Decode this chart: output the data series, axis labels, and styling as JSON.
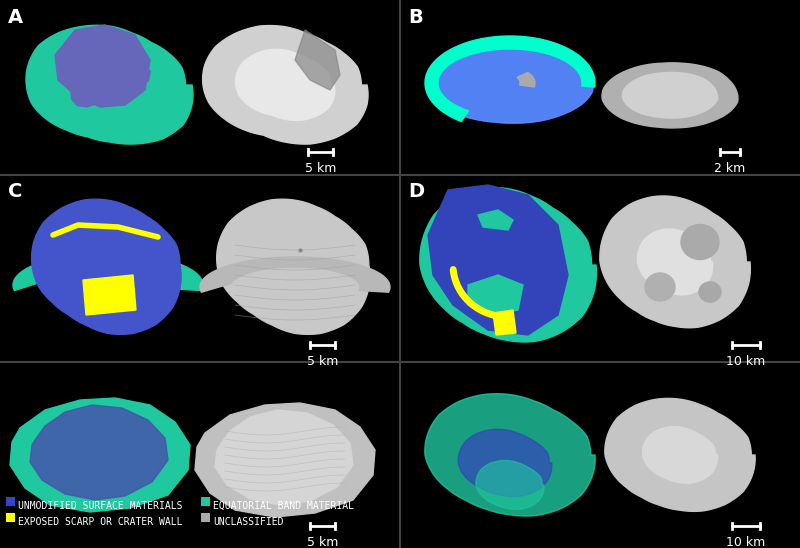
{
  "bg": "#000000",
  "white": "#ffffff",
  "teal": "#20c8a0",
  "blue": "#3344cc",
  "purple": "#6666bb",
  "yellow": "#ffff00",
  "gray_light": "#cccccc",
  "gray_mid": "#999999",
  "gray_dark": "#666666",
  "cyan_bright": "#00ffcc",
  "blue_bright": "#4488ff",
  "divider": "#444444",
  "legend_items": [
    {
      "label": "UNMODIFIED SURFACE MATERIALS",
      "color": "#3344cc"
    },
    {
      "label": "EQUATORIAL BAND MATERIAL",
      "color": "#20c8a0"
    },
    {
      "label": "EXPOSED SCARP OR CRATER WALL",
      "color": "#ffff00"
    },
    {
      "label": "UNCLASSIFIED",
      "color": "#aaaaaa"
    }
  ],
  "panel_label_fontsize": 14,
  "legend_fontsize": 7,
  "scale_fontsize": 9
}
